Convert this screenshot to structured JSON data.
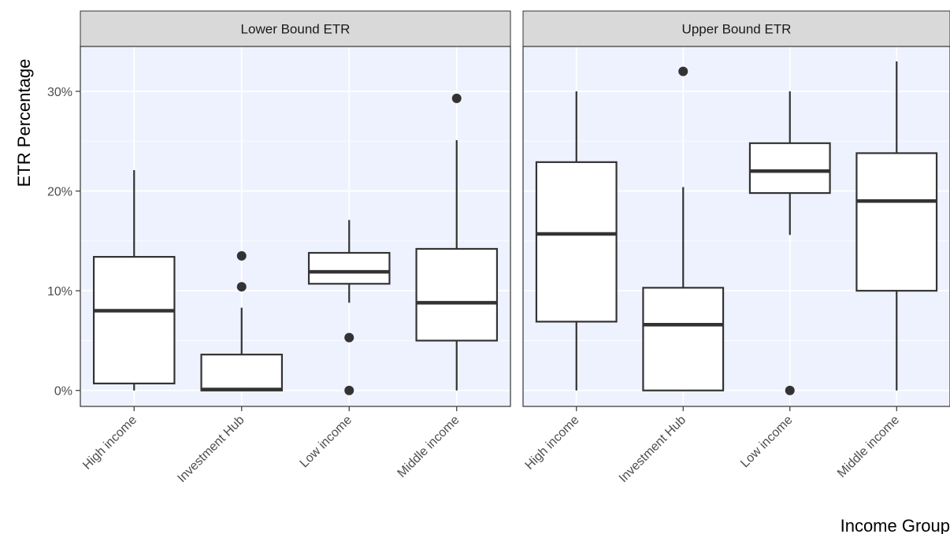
{
  "chart_data": {
    "type": "boxplot",
    "xlabel": "Income Group",
    "ylabel": "ETR Percentage",
    "ylim": [
      -1.6,
      34.5
    ],
    "y_ticks": [
      0,
      10,
      20,
      30
    ],
    "y_tick_labels": [
      "0%",
      "10%",
      "20%",
      "30%"
    ],
    "categories": [
      "High income",
      "Investment Hub",
      "Low income",
      "Middle income"
    ],
    "colors": {
      "panel_bg": "#eef2ff",
      "grid": "#ffffff",
      "strip_bg": "#d9d9d9",
      "box_line": "#333333",
      "box_fill": "#ffffff",
      "outlier": "#333333",
      "border": "#333333"
    },
    "panels": [
      {
        "strip": "Lower Bound ETR",
        "boxes": [
          {
            "category": "High income",
            "min": 0.0,
            "q1": 0.7,
            "median": 8.0,
            "q3": 13.4,
            "max": 22.1,
            "outliers": []
          },
          {
            "category": "Investment Hub",
            "min": 0.0,
            "q1": 0.0,
            "median": 0.1,
            "q3": 3.6,
            "max": 8.3,
            "outliers": [
              10.4,
              13.5
            ]
          },
          {
            "category": "Low income",
            "min": 8.8,
            "q1": 10.7,
            "median": 11.9,
            "q3": 13.8,
            "max": 17.1,
            "outliers": [
              5.3,
              0.0
            ]
          },
          {
            "category": "Middle income",
            "min": 0.0,
            "q1": 5.0,
            "median": 8.8,
            "q3": 14.2,
            "max": 25.1,
            "outliers": [
              29.3
            ]
          }
        ]
      },
      {
        "strip": "Upper Bound ETR",
        "boxes": [
          {
            "category": "High income",
            "min": 0.0,
            "q1": 6.9,
            "median": 15.7,
            "q3": 22.9,
            "max": 30.0,
            "outliers": []
          },
          {
            "category": "Investment Hub",
            "min": 0.0,
            "q1": 0.0,
            "median": 6.6,
            "q3": 10.3,
            "max": 20.4,
            "outliers": [
              32.0
            ]
          },
          {
            "category": "Low income",
            "min": 15.6,
            "q1": 19.8,
            "median": 22.0,
            "q3": 24.8,
            "max": 30.0,
            "outliers": [
              0.0
            ]
          },
          {
            "category": "Middle income",
            "min": 0.0,
            "q1": 10.0,
            "median": 19.0,
            "q3": 23.8,
            "max": 33.0,
            "outliers": []
          }
        ]
      }
    ]
  }
}
